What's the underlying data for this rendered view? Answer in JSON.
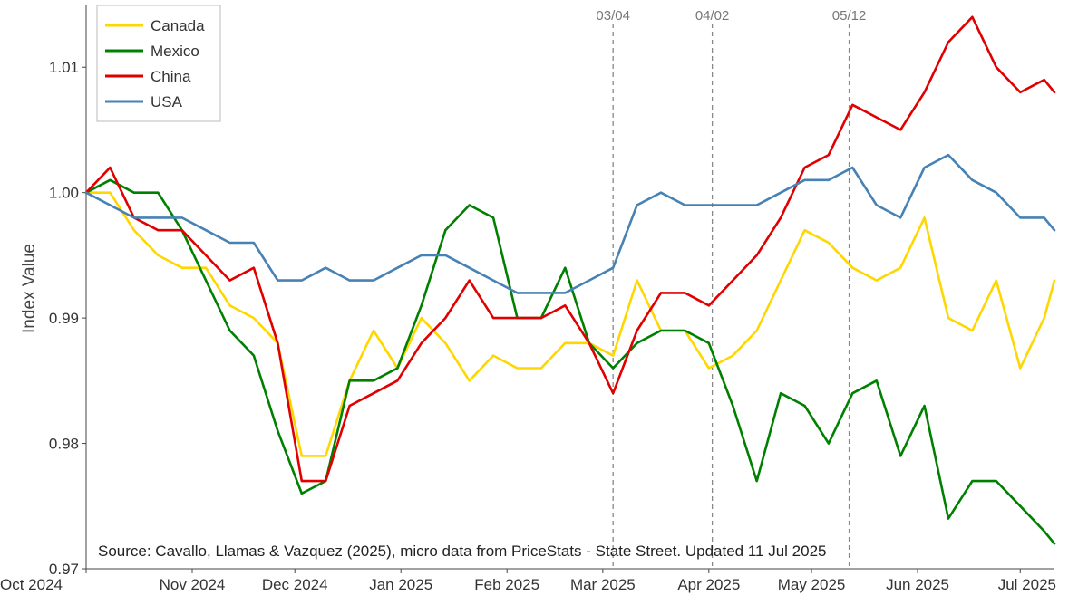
{
  "chart_data": {
    "type": "line",
    "ylabel": "Index Value",
    "source_note": "Source: Cavallo, Llamas & Vazquez (2025), micro data from PriceStats - State Street. Updated 11 Jul 2025",
    "xlim": [
      "2024-10-01",
      "2025-07-11"
    ],
    "ylim": [
      0.97,
      1.015
    ],
    "ytick_values": [
      0.97,
      0.98,
      0.99,
      1.0,
      1.01
    ],
    "ytick_labels": [
      "0.97",
      "0.98",
      "0.99",
      "1.00",
      "1.01"
    ],
    "xtick_values": [
      "2024-10-01",
      "2024-11-01",
      "2024-12-01",
      "2025-01-01",
      "2025-02-01",
      "2025-03-01",
      "2025-04-01",
      "2025-05-01",
      "2025-06-01",
      "2025-07-01"
    ],
    "xtick_labels": [
      "Oct 2024",
      "Nov 2024",
      "Dec 2024",
      "Jan 2025",
      "Feb 2025",
      "Mar 2025",
      "Apr 2025",
      "May 2025",
      "Jun 2025",
      "Jul 2025"
    ],
    "grid": false,
    "legend_position": "top-left",
    "events": [
      {
        "label": "03/04",
        "x": "2025-03-04"
      },
      {
        "label": "04/02",
        "x": "2025-04-02"
      },
      {
        "label": "05/12",
        "x": "2025-05-12"
      }
    ],
    "x": [
      "2024-10-01",
      "2024-10-08",
      "2024-10-15",
      "2024-10-22",
      "2024-10-29",
      "2024-11-05",
      "2024-11-12",
      "2024-11-19",
      "2024-11-26",
      "2024-12-03",
      "2024-12-10",
      "2024-12-17",
      "2024-12-24",
      "2024-12-31",
      "2025-01-07",
      "2025-01-14",
      "2025-01-21",
      "2025-01-28",
      "2025-02-04",
      "2025-02-11",
      "2025-02-18",
      "2025-02-25",
      "2025-03-04",
      "2025-03-11",
      "2025-03-18",
      "2025-03-25",
      "2025-04-01",
      "2025-04-08",
      "2025-04-15",
      "2025-04-22",
      "2025-04-29",
      "2025-05-06",
      "2025-05-13",
      "2025-05-20",
      "2025-05-27",
      "2025-06-03",
      "2025-06-10",
      "2025-06-17",
      "2025-06-24",
      "2025-07-01",
      "2025-07-08",
      "2025-07-11"
    ],
    "series": [
      {
        "name": "Canada",
        "color": "#ffd700",
        "values": [
          1.0,
          1.0,
          0.997,
          0.995,
          0.994,
          0.994,
          0.991,
          0.99,
          0.988,
          0.979,
          0.979,
          0.985,
          0.989,
          0.986,
          0.99,
          0.988,
          0.985,
          0.987,
          0.986,
          0.986,
          0.988,
          0.988,
          0.987,
          0.993,
          0.989,
          0.989,
          0.986,
          0.987,
          0.989,
          0.993,
          0.997,
          0.996,
          0.994,
          0.993,
          0.994,
          0.998,
          0.99,
          0.989,
          0.993,
          0.986,
          0.99,
          0.993
        ]
      },
      {
        "name": "Mexico",
        "color": "#008000",
        "values": [
          1.0,
          1.001,
          1.0,
          1.0,
          0.997,
          0.993,
          0.989,
          0.987,
          0.981,
          0.976,
          0.977,
          0.985,
          0.985,
          0.986,
          0.991,
          0.997,
          0.999,
          0.998,
          0.99,
          0.99,
          0.994,
          0.988,
          0.986,
          0.988,
          0.989,
          0.989,
          0.988,
          0.983,
          0.977,
          0.984,
          0.983,
          0.98,
          0.984,
          0.985,
          0.979,
          0.983,
          0.974,
          0.977,
          0.977,
          0.975,
          0.973,
          0.972
        ]
      },
      {
        "name": "China",
        "color": "#e00000",
        "values": [
          1.0,
          1.002,
          0.998,
          0.997,
          0.997,
          0.995,
          0.993,
          0.994,
          0.988,
          0.977,
          0.977,
          0.983,
          0.984,
          0.985,
          0.988,
          0.99,
          0.993,
          0.99,
          0.99,
          0.99,
          0.991,
          0.988,
          0.984,
          0.989,
          0.992,
          0.992,
          0.991,
          0.993,
          0.995,
          0.998,
          1.002,
          1.003,
          1.007,
          1.006,
          1.005,
          1.008,
          1.012,
          1.014,
          1.01,
          1.008,
          1.009,
          1.008
        ]
      },
      {
        "name": "USA",
        "color": "#4682b4",
        "values": [
          1.0,
          0.999,
          0.998,
          0.998,
          0.998,
          0.997,
          0.996,
          0.996,
          0.993,
          0.993,
          0.994,
          0.993,
          0.993,
          0.994,
          0.995,
          0.995,
          0.994,
          0.993,
          0.992,
          0.992,
          0.992,
          0.993,
          0.994,
          0.999,
          1.0,
          0.999,
          0.999,
          0.999,
          0.999,
          1.0,
          1.001,
          1.001,
          1.002,
          0.999,
          0.998,
          1.002,
          1.003,
          1.001,
          1.0,
          0.998,
          0.998,
          0.997
        ]
      }
    ]
  }
}
